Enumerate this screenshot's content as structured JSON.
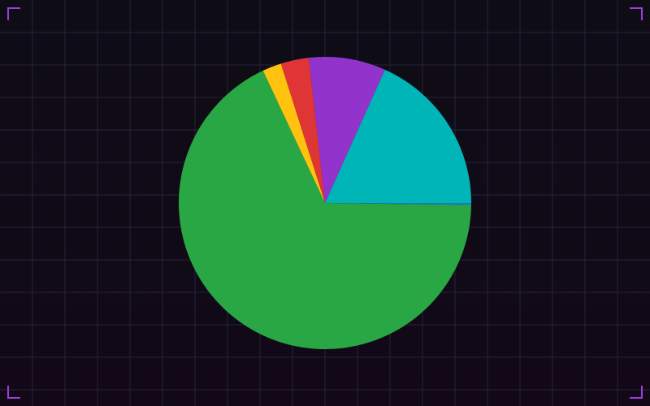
{
  "chart_data": {
    "type": "pie",
    "title": "",
    "direction": "counterclockwise",
    "grid": true,
    "legend": "none",
    "slices": [
      {
        "value": 0.2,
        "color": "#1a7fd4"
      },
      {
        "value": 18.3,
        "color": "#00b5b8"
      },
      {
        "value": 8.5,
        "color": "#9234cc"
      },
      {
        "value": 3.1,
        "color": "#e03535"
      },
      {
        "value": 2.1,
        "color": "#ffc20e"
      },
      {
        "value": 67.8,
        "color": "#29a745"
      }
    ]
  },
  "theme": {
    "background": "#0e0d16",
    "grid": "#25243a",
    "corner_accent": "#9b3fd6"
  }
}
